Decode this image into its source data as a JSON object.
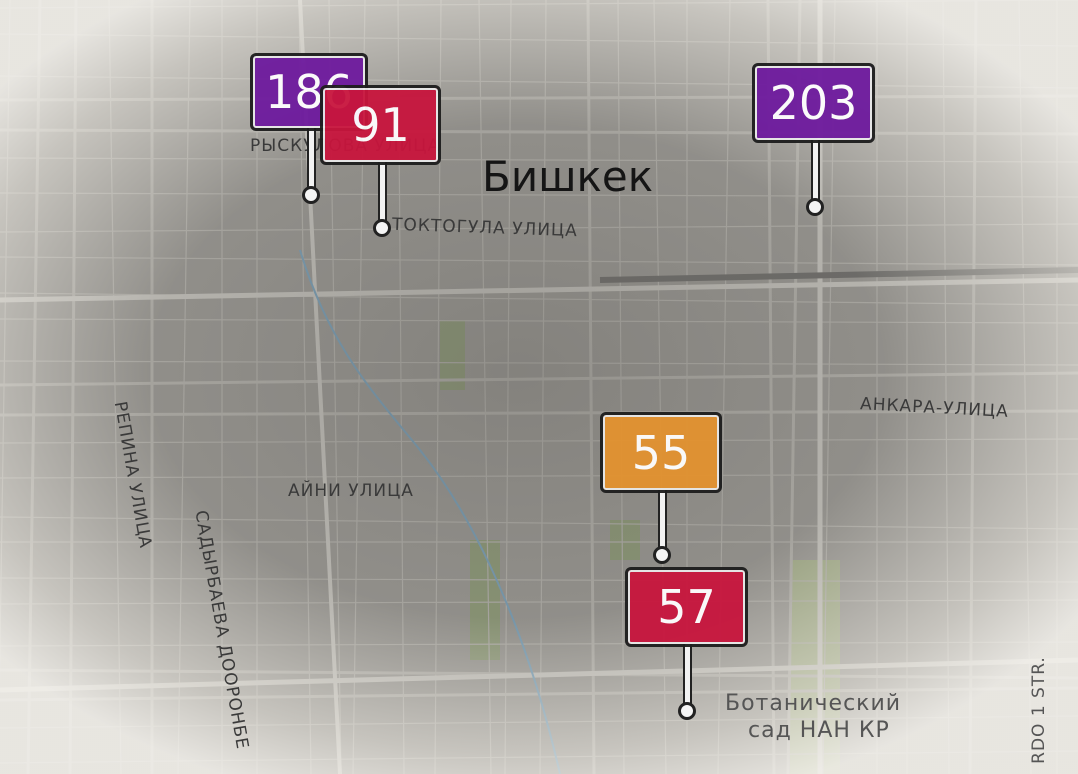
{
  "city_label": "Бишкек",
  "street_labels": {
    "ryskulova": "РЫСКУЛОВА УЛИЦА",
    "toktogula": "ТОКТОГУЛА УЛИЦА",
    "ankara": "АНКАРА-УЛИЦА",
    "aini": "АЙНИ УЛИЦА",
    "repina": "РЕПИНА УЛИЦА",
    "sadyrbaeva": "САДЫРБАЕВА ДООРОНБЕ",
    "rdo": "RDO 1 STR."
  },
  "poi": {
    "botanical_line1": "Ботанический",
    "botanical_line2": "сад НАН КР"
  },
  "colors": {
    "purple": "#6e1a9e",
    "red": "#c8153d",
    "orange": "#e3922f"
  },
  "markers": [
    {
      "value": "186",
      "level": "purple"
    },
    {
      "value": "91",
      "level": "red"
    },
    {
      "value": "203",
      "level": "purple"
    },
    {
      "value": "55",
      "level": "orange"
    },
    {
      "value": "57",
      "level": "red"
    }
  ]
}
